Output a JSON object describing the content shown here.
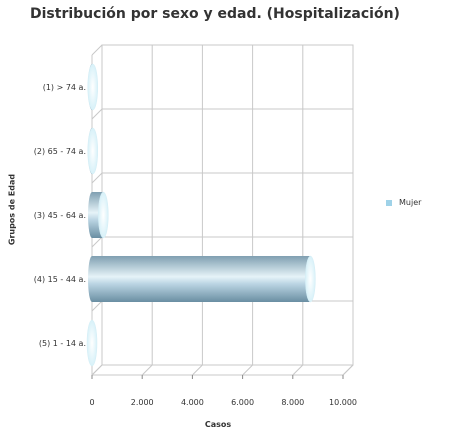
{
  "chart_data": {
    "type": "bar",
    "orientation": "horizontal",
    "title": "Distribución por sexo y edad. (Hospitalización)",
    "xlabel": "Casos",
    "ylabel": "Grupos de Edad",
    "categories": [
      "(1) > 74 a.",
      "(2) 65 - 74 a.",
      "(3) 45 - 64 a.",
      "(4) 15 - 44 a.",
      "(5) 1 - 14 a."
    ],
    "series": [
      {
        "name": "Mujer",
        "values": [
          30,
          30,
          450,
          8700,
          0
        ],
        "color": "#9fd2e8"
      }
    ],
    "xlim": [
      0,
      10000
    ],
    "xticks": [
      0,
      2000,
      4000,
      6000,
      8000,
      10000
    ],
    "xtick_labels": [
      "0",
      "2.000",
      "4.000",
      "6.000",
      "8.000",
      "10.000"
    ],
    "grid": true,
    "legend_position": "right",
    "style": "3d-cylinder"
  }
}
